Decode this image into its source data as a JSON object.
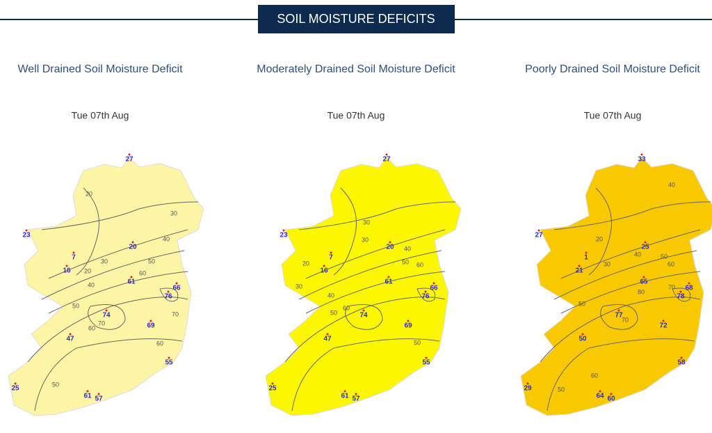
{
  "header": {
    "title": "SOIL MOISTURE DEFICITS"
  },
  "panels": [
    {
      "title": "Well Drained Soil Moisture Deficit",
      "date": "Tue 07th Aug",
      "stations": [
        27,
        23,
        20,
        7,
        16,
        61,
        66,
        76,
        74,
        69,
        47,
        55,
        25,
        61,
        57
      ],
      "contours": [
        20,
        30,
        40,
        50,
        60,
        30,
        20,
        40,
        50,
        60,
        70,
        70,
        60,
        50
      ]
    },
    {
      "title": "Moderately Drained Soil Moisture Deficit",
      "date": "Tue 07th Aug",
      "stations": [
        27,
        23,
        20,
        7,
        16,
        61,
        66,
        76,
        74,
        69,
        47,
        55,
        25,
        61,
        57
      ],
      "contours": [
        30,
        30,
        40,
        50,
        60,
        20,
        30,
        40,
        50,
        60,
        50
      ]
    },
    {
      "title": "Poorly Drained Soil Moisture Deficit",
      "date": "Tue 07th Aug",
      "stations": [
        33,
        27,
        25,
        1,
        21,
        65,
        68,
        78,
        77,
        72,
        50,
        58,
        29,
        64,
        60
      ],
      "contours": [
        40,
        20,
        30,
        40,
        50,
        60,
        70,
        80,
        70,
        50,
        60,
        50
      ]
    }
  ]
}
